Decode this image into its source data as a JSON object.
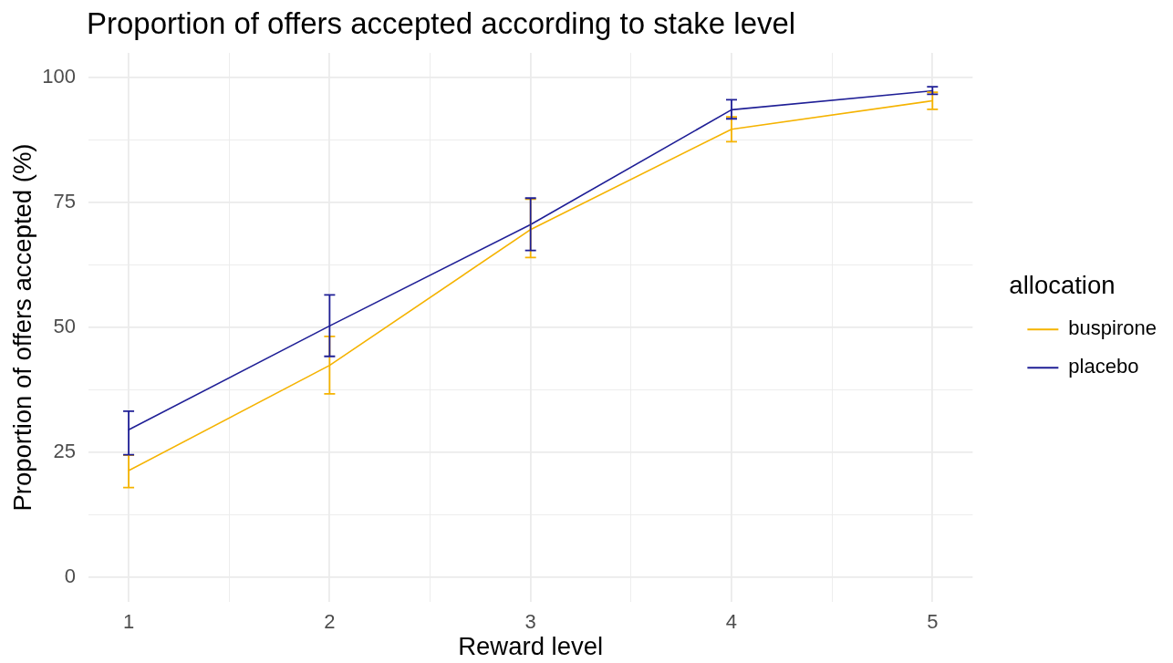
{
  "chart_data": {
    "type": "line",
    "title": "Proportion of offers accepted according to stake level",
    "xlabel": "Reward level",
    "ylabel": "Proportion of offers accepted (%)",
    "legend_title": "allocation",
    "x": [
      1,
      2,
      3,
      4,
      5
    ],
    "series": [
      {
        "name": "buspirone",
        "color": "#f5b301",
        "values": [
          21.3,
          42.4,
          69.6,
          89.7,
          95.4
        ],
        "errors": [
          [
            17.9,
            24.4
          ],
          [
            36.7,
            48.2
          ],
          [
            64.0,
            75.7
          ],
          [
            87.2,
            92.2
          ],
          [
            93.7,
            97.1
          ]
        ]
      },
      {
        "name": "placebo",
        "color": "#1f1f96",
        "values": [
          29.5,
          50.3,
          70.6,
          93.6,
          97.4
        ],
        "errors": [
          [
            24.5,
            33.2
          ],
          [
            44.2,
            56.5
          ],
          [
            65.4,
            75.9
          ],
          [
            91.8,
            95.6
          ],
          [
            96.7,
            98.2
          ]
        ]
      }
    ],
    "xlim": [
      0.8,
      5.2
    ],
    "xticks": [
      1,
      {
        "value": 1.5,
        "label": null
      },
      2,
      {
        "value": 2.5,
        "label": null
      },
      3,
      {
        "value": 3.5,
        "label": null
      },
      4,
      {
        "value": 4.5,
        "label": null
      },
      5
    ],
    "ylim": [
      -5,
      105
    ],
    "yticks": [
      0,
      {
        "value": 12.5,
        "label": null
      },
      25,
      {
        "value": 37.5,
        "label": null
      },
      50,
      {
        "value": 62.5,
        "label": null
      },
      75,
      {
        "value": 87.5,
        "label": null
      },
      100
    ],
    "grid": true,
    "legend": "right",
    "marker": "none",
    "line_style": "solid"
  }
}
